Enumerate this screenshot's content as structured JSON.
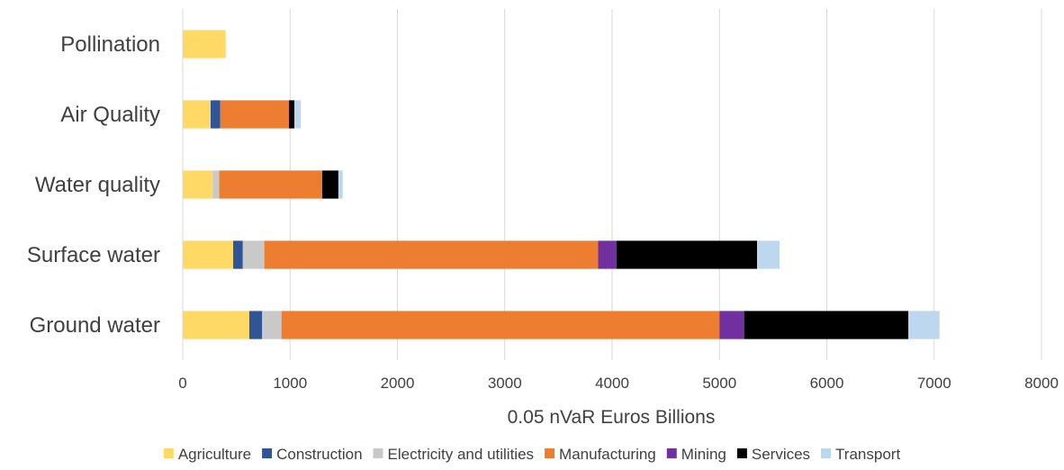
{
  "chart_data": {
    "type": "bar",
    "orientation": "horizontal",
    "stacked": true,
    "categories": [
      "Pollination",
      "Air Quality",
      "Water quality",
      "Surface water",
      "Ground water"
    ],
    "series": [
      {
        "name": "Agriculture",
        "color": "#FFD966",
        "values": [
          400,
          260,
          280,
          470,
          620
        ]
      },
      {
        "name": "Construction",
        "color": "#2F5597",
        "values": [
          0,
          90,
          0,
          90,
          120
        ]
      },
      {
        "name": "Electricity and utilities",
        "color": "#C9C9C9",
        "values": [
          0,
          0,
          60,
          200,
          180
        ]
      },
      {
        "name": "Manufacturing",
        "color": "#ED7D31",
        "values": [
          0,
          640,
          960,
          3110,
          4080
        ]
      },
      {
        "name": "Mining",
        "color": "#7030A0",
        "values": [
          0,
          0,
          0,
          170,
          230
        ]
      },
      {
        "name": "Services",
        "color": "#000000",
        "values": [
          0,
          50,
          150,
          1310,
          1530
        ]
      },
      {
        "name": "Transport",
        "color": "#BDD7EE",
        "values": [
          0,
          60,
          40,
          210,
          290
        ]
      }
    ],
    "xlim": [
      0,
      8000
    ],
    "xticks": [
      0,
      1000,
      2000,
      3000,
      4000,
      5000,
      6000,
      7000,
      8000
    ],
    "xlabel": "0.05 nVaR Euros Billions",
    "ylabel": "",
    "title": "",
    "grid": true,
    "legend": "bottom"
  }
}
